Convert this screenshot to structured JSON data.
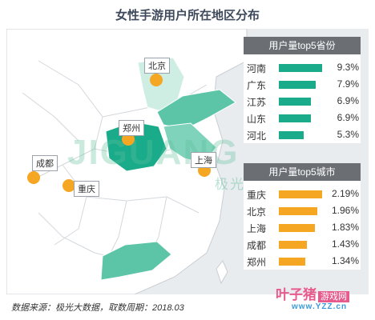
{
  "title": "女性手游用户所在地区分布",
  "watermark": {
    "brand": "JIGUANG",
    "tagline": "极光大数据服务"
  },
  "map": {
    "markers": [
      {
        "name": "北京"
      },
      {
        "name": "郑州"
      },
      {
        "name": "上海"
      },
      {
        "name": "成都"
      },
      {
        "name": "重庆"
      }
    ]
  },
  "chart_data": [
    {
      "type": "bar",
      "title": "用户量top5省份",
      "categories": [
        "河南",
        "广东",
        "江苏",
        "山东",
        "河北"
      ],
      "values": [
        9.3,
        7.9,
        6.9,
        6.9,
        5.3
      ],
      "labels": [
        "9.3%",
        "7.9%",
        "6.9%",
        "6.9%",
        "5.3%"
      ],
      "color": "#1aab8a"
    },
    {
      "type": "bar",
      "title": "用户量top5城市",
      "categories": [
        "重庆",
        "北京",
        "上海",
        "成都",
        "郑州"
      ],
      "values": [
        2.19,
        1.96,
        1.83,
        1.43,
        1.34
      ],
      "labels": [
        "2.19%",
        "1.96%",
        "1.83%",
        "1.43%",
        "1.34%"
      ],
      "color": "#f5a623"
    }
  ],
  "footer": "数据来源：极光大数据，取数周期：2018.03",
  "site_logo": {
    "name": "叶子猪",
    "tag": "游戏网",
    "url": "www.YZZ.cn"
  }
}
